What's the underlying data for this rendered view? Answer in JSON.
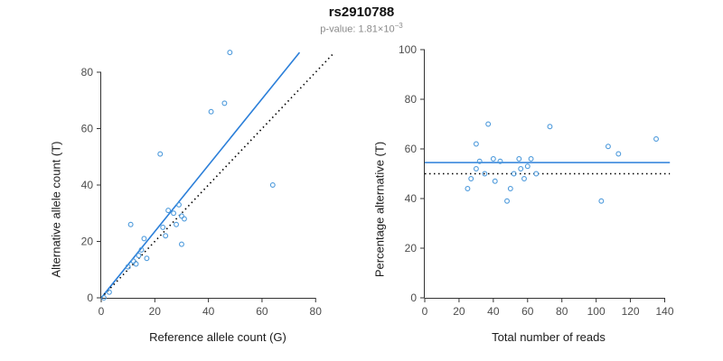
{
  "header": {
    "title": "rs2910788",
    "pvalue_prefix": "p-value: 1.81×10",
    "pvalue_exponent": "−3"
  },
  "colors": {
    "accent_blue": "#2b7fd9",
    "point_blue": "#4f9bdc",
    "identity_black": "#000000"
  },
  "chart_data": [
    {
      "type": "scatter",
      "title": "",
      "xlabel": "Reference allele count (G)",
      "ylabel": "Alternative allele count (T)",
      "xlim": [
        0,
        87
      ],
      "ylim": [
        0,
        88
      ],
      "xticks": [
        0,
        20,
        40,
        60,
        80
      ],
      "yticks": [
        0,
        20,
        40,
        60,
        80
      ],
      "grid": false,
      "point_color": "#4f9bdc",
      "points": [
        [
          1,
          0
        ],
        [
          3,
          2
        ],
        [
          10,
          11
        ],
        [
          11,
          26
        ],
        [
          12,
          13
        ],
        [
          13,
          12
        ],
        [
          14,
          15
        ],
        [
          15,
          17
        ],
        [
          16,
          21
        ],
        [
          17,
          14
        ],
        [
          22,
          51
        ],
        [
          23,
          25
        ],
        [
          24,
          22
        ],
        [
          25,
          31
        ],
        [
          27,
          30
        ],
        [
          28,
          26
        ],
        [
          29,
          33
        ],
        [
          30,
          29
        ],
        [
          30,
          19
        ],
        [
          31,
          28
        ],
        [
          41,
          66
        ],
        [
          46,
          69
        ],
        [
          48,
          87
        ],
        [
          64,
          40
        ]
      ],
      "lines": [
        {
          "name": "regression-line",
          "style": "solid",
          "color": "#2b7fd9",
          "x1": 0,
          "y1": 0,
          "x2": 74,
          "y2": 87
        },
        {
          "name": "identity-line",
          "style": "dotted",
          "color": "#000000",
          "x1": 0,
          "y1": 0,
          "x2": 87,
          "y2": 87
        }
      ]
    },
    {
      "type": "scatter",
      "title": "",
      "xlabel": "Total number of reads",
      "ylabel": "Percentage alternative (T)",
      "xlim": [
        0,
        145
      ],
      "ylim": [
        0,
        100
      ],
      "xticks": [
        0,
        20,
        40,
        60,
        80,
        100,
        120,
        140
      ],
      "yticks": [
        0,
        20,
        40,
        60,
        80,
        100
      ],
      "grid": false,
      "point_color": "#4f9bdc",
      "points": [
        [
          25,
          44
        ],
        [
          27,
          48
        ],
        [
          30,
          62
        ],
        [
          30,
          52
        ],
        [
          32,
          55
        ],
        [
          35,
          50
        ],
        [
          37,
          70
        ],
        [
          40,
          56
        ],
        [
          41,
          47
        ],
        [
          44,
          55
        ],
        [
          48,
          39
        ],
        [
          50,
          44
        ],
        [
          52,
          50
        ],
        [
          55,
          56
        ],
        [
          56,
          52
        ],
        [
          58,
          48
        ],
        [
          60,
          53
        ],
        [
          62,
          56
        ],
        [
          65,
          50
        ],
        [
          73,
          69
        ],
        [
          103,
          39
        ],
        [
          107,
          61
        ],
        [
          113,
          58
        ],
        [
          135,
          64
        ]
      ],
      "lines": [
        {
          "name": "mean-percentage-line",
          "style": "solid",
          "color": "#2b7fd9",
          "x1": 0,
          "y1": 54.5,
          "x2": 143,
          "y2": 54.5
        },
        {
          "name": "expected-50-line",
          "style": "dotted",
          "color": "#000000",
          "x1": 0,
          "y1": 50,
          "x2": 143,
          "y2": 50
        }
      ]
    }
  ]
}
